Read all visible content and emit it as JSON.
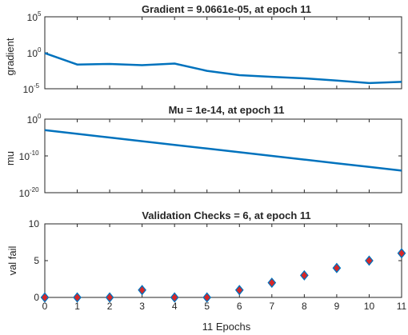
{
  "chart_data": [
    {
      "type": "line",
      "title": "Gradient = 9.0661e-05, at epoch 11",
      "ylabel": "gradient",
      "yscale": "log",
      "ylim_exp": [
        -5,
        5
      ],
      "ytick_exps": [
        -5,
        0,
        5
      ],
      "xlim": [
        0,
        11
      ],
      "color": "#0072BD",
      "x": [
        0,
        1,
        2,
        3,
        4,
        5,
        6,
        7,
        8,
        9,
        10,
        11
      ],
      "y": [
        0.9,
        0.023,
        0.028,
        0.019,
        0.032,
        0.0031,
        0.00077,
        0.00045,
        0.00028,
        0.00014,
        6.2e-05,
        9.0661e-05
      ]
    },
    {
      "type": "line",
      "title": "Mu = 1e-14, at epoch 11",
      "ylabel": "mu",
      "yscale": "log",
      "ylim_exp": [
        -20,
        0
      ],
      "ytick_exps": [
        -20,
        -10,
        0
      ],
      "xlim": [
        0,
        11
      ],
      "color": "#0072BD",
      "x": [
        0,
        1,
        2,
        3,
        4,
        5,
        6,
        7,
        8,
        9,
        10,
        11
      ],
      "y": [
        0.001,
        0.0001,
        1e-05,
        1e-06,
        1e-07,
        1e-08,
        1e-09,
        1e-10,
        1e-11,
        1e-12,
        1e-13,
        1e-14
      ]
    },
    {
      "type": "scatter",
      "title": "Validation Checks = 6, at epoch 11",
      "ylabel": "val fail",
      "xlabel": "11 Epochs",
      "ylim": [
        0,
        10
      ],
      "yticks": [
        0,
        5,
        10
      ],
      "xlim": [
        0,
        11
      ],
      "xticks": [
        0,
        1,
        2,
        3,
        4,
        5,
        6,
        7,
        8,
        9,
        10,
        11
      ],
      "marker": "diamond",
      "marker_fill": "#D62728",
      "marker_edge": "#0072BD",
      "x": [
        0,
        1,
        2,
        3,
        4,
        5,
        6,
        7,
        8,
        9,
        10,
        11
      ],
      "y": [
        0,
        0,
        0,
        1,
        0,
        0,
        1,
        2,
        3,
        4,
        5,
        6
      ]
    }
  ]
}
